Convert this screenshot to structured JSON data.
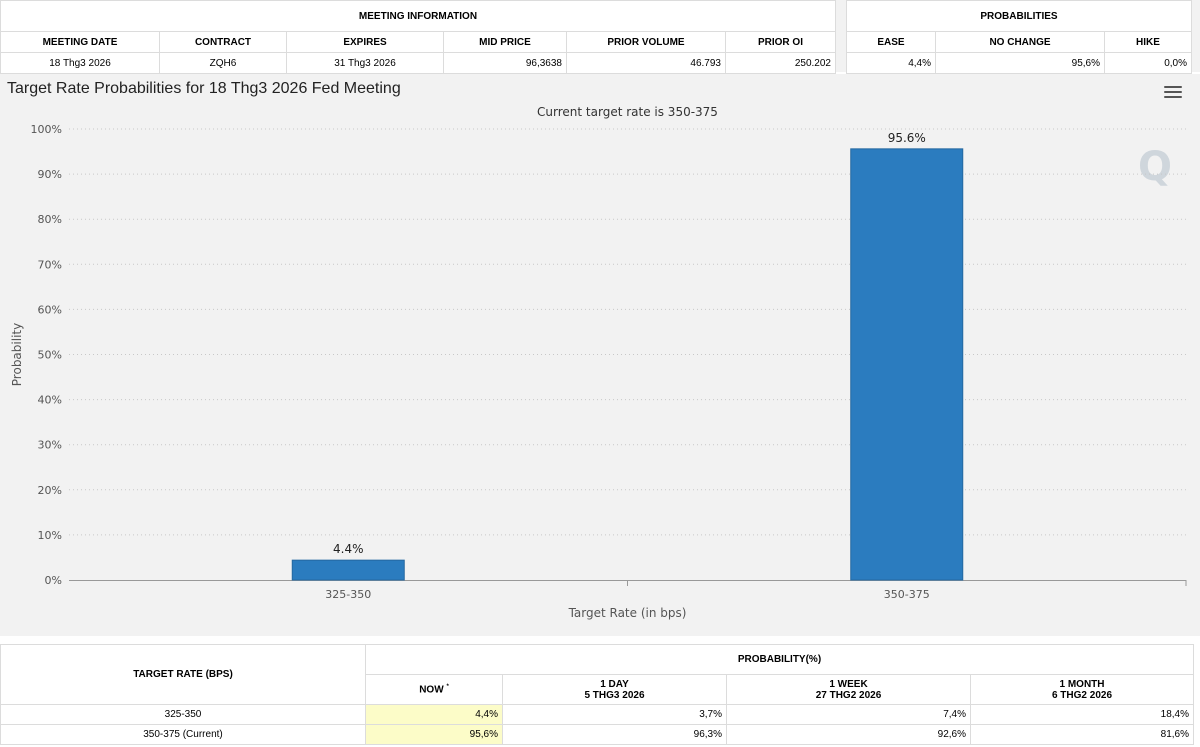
{
  "meeting_info": {
    "header": "MEETING INFORMATION",
    "columns": [
      "MEETING DATE",
      "CONTRACT",
      "EXPIRES",
      "MID PRICE",
      "PRIOR VOLUME",
      "PRIOR OI"
    ],
    "row": [
      "18 Thg3 2026",
      "ZQH6",
      "31 Thg3 2026",
      "96,3638",
      "46.793",
      "250.202"
    ]
  },
  "probabilities": {
    "header": "PROBABILITIES",
    "columns": [
      "EASE",
      "NO CHANGE",
      "HIKE"
    ],
    "row": [
      "4,4%",
      "95,6%",
      "0,0%"
    ]
  },
  "chart": {
    "title": "Target Rate Probabilities for 18 Thg3 2026 Fed Meeting",
    "menu_icon": "hamburger-menu-icon",
    "logo_text": "Q"
  },
  "chart_data": {
    "type": "bar",
    "title": "Target Rate Probabilities for 18 Thg3 2026 Fed Meeting",
    "subtitle": "Current target rate is 350-375",
    "categories": [
      "325-350",
      "350-375"
    ],
    "values": [
      4.4,
      95.6
    ],
    "data_labels": [
      "4.4%",
      "95.6%"
    ],
    "xlabel": "Target Rate (in bps)",
    "ylabel": "Probability",
    "ylim": [
      0,
      100
    ],
    "yticks": [
      "0%",
      "10%",
      "20%",
      "30%",
      "40%",
      "50%",
      "60%",
      "70%",
      "80%",
      "90%",
      "100%"
    ],
    "grid": true,
    "bar_color": "#2b7cbf"
  },
  "bottom_table": {
    "target_header": "TARGET RATE (BPS)",
    "prob_header": "PROBABILITY(%)",
    "sub_headers": [
      {
        "line1": "NOW",
        "line2": "",
        "sup": "*"
      },
      {
        "line1": "1 DAY",
        "line2": "5 THG3 2026",
        "sup": ""
      },
      {
        "line1": "1 WEEK",
        "line2": "27 THG2 2026",
        "sup": ""
      },
      {
        "line1": "1 MONTH",
        "line2": "6 THG2 2026",
        "sup": ""
      }
    ],
    "rows": [
      {
        "rate": "325-350",
        "values": [
          "4,4%",
          "3,7%",
          "7,4%",
          "18,4%"
        ]
      },
      {
        "rate": "350-375 (Current)",
        "values": [
          "95,6%",
          "96,3%",
          "92,6%",
          "81,6%"
        ]
      }
    ]
  }
}
